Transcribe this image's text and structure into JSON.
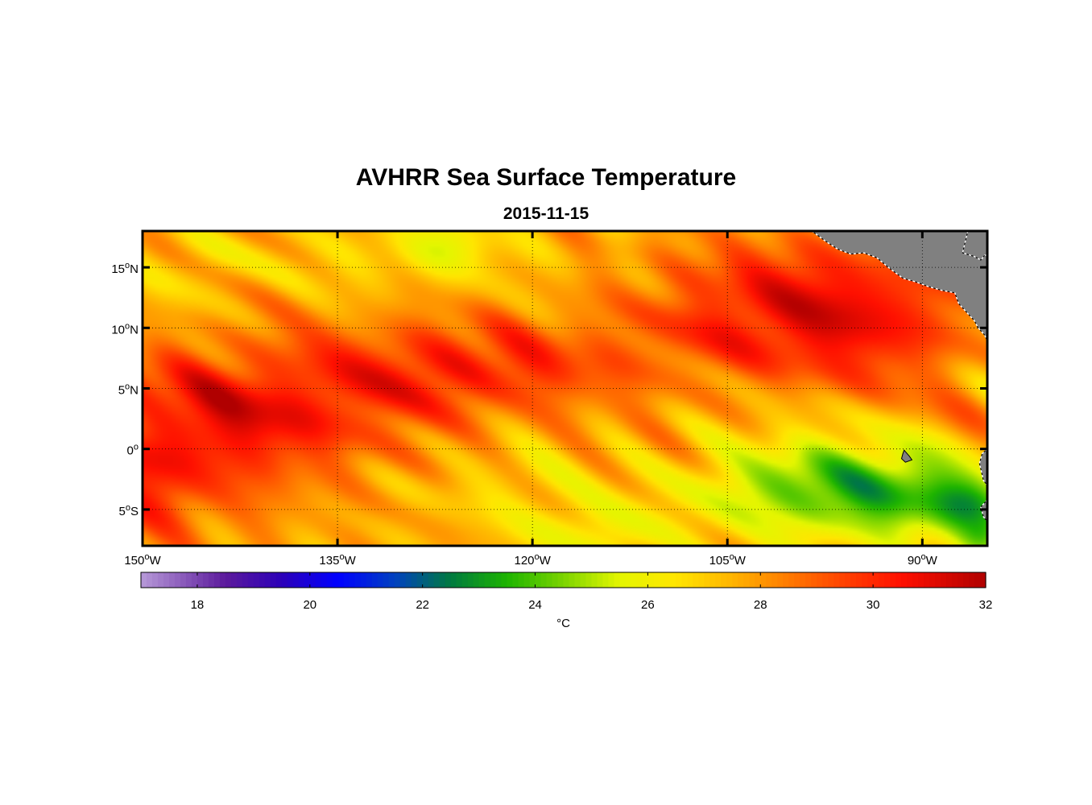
{
  "title": "AVHRR Sea Surface Temperature",
  "subtitle": "2015-11-15",
  "map": {
    "lon_range": [
      -150,
      -85
    ],
    "lat_range": [
      -8,
      18
    ],
    "lon_ticks": [
      {
        "value": -150,
        "deg": "150",
        "hemi": "W"
      },
      {
        "value": -135,
        "deg": "135",
        "hemi": "W"
      },
      {
        "value": -120,
        "deg": "120",
        "hemi": "W"
      },
      {
        "value": -105,
        "deg": "105",
        "hemi": "W"
      },
      {
        "value": -90,
        "deg": "90",
        "hemi": "W"
      }
    ],
    "lat_ticks": [
      {
        "value": 15,
        "deg": "15",
        "hemi": "N"
      },
      {
        "value": 10,
        "deg": "10",
        "hemi": "N"
      },
      {
        "value": 5,
        "deg": "5",
        "hemi": "N"
      },
      {
        "value": 0,
        "deg": "0",
        "hemi": ""
      },
      {
        "value": -5,
        "deg": "5",
        "hemi": "S"
      }
    ],
    "land_color": "#808080",
    "grid_style": "dotted"
  },
  "colorbar": {
    "min": 17,
    "max": 32,
    "ticks": [
      18,
      20,
      22,
      24,
      26,
      28,
      30,
      32
    ],
    "label": "°C",
    "stops": [
      {
        "v": 17,
        "c": "#b79ad8"
      },
      {
        "v": 18.5,
        "c": "#5c1a9c"
      },
      {
        "v": 19.5,
        "c": "#2c00b8"
      },
      {
        "v": 20.5,
        "c": "#0000ff"
      },
      {
        "v": 21.5,
        "c": "#0040c0"
      },
      {
        "v": 22.5,
        "c": "#007a40"
      },
      {
        "v": 23.5,
        "c": "#1db400"
      },
      {
        "v": 24.5,
        "c": "#7cd400"
      },
      {
        "v": 25.5,
        "c": "#e4f600"
      },
      {
        "v": 26.5,
        "c": "#ffe600"
      },
      {
        "v": 27.5,
        "c": "#ffb400"
      },
      {
        "v": 28.5,
        "c": "#ff7a00"
      },
      {
        "v": 29.5,
        "c": "#ff4000"
      },
      {
        "v": 30.5,
        "c": "#ff1000"
      },
      {
        "v": 32,
        "c": "#b00000"
      }
    ]
  },
  "sst_field": {
    "description_units": "°C",
    "background": 27.6,
    "anomalies": [
      {
        "lon": -146,
        "lat": 1,
        "rlon": 9,
        "rlat": 7,
        "amp": 2.2
      },
      {
        "lon": -138,
        "lat": 4,
        "rlon": 10,
        "rlat": 5,
        "amp": 1.8
      },
      {
        "lon": -127,
        "lat": 6,
        "rlon": 9,
        "rlat": 4,
        "amp": 1.8
      },
      {
        "lon": -113,
        "lat": 8,
        "rlon": 14,
        "rlat": 4,
        "amp": 1.4
      },
      {
        "lon": -100,
        "lat": 13,
        "rlon": 9,
        "rlat": 5,
        "amp": 2.5
      },
      {
        "lon": -93,
        "lat": 10,
        "rlon": 8,
        "rlat": 5,
        "amp": 2.0
      },
      {
        "lon": -150,
        "lat": -3,
        "rlon": 4,
        "rlat": 4,
        "amp": 1.4
      },
      {
        "lon": -130,
        "lat": 16,
        "rlon": 9,
        "rlat": 3,
        "amp": -0.9
      },
      {
        "lon": -146,
        "lat": 15,
        "rlon": 5,
        "rlat": 3,
        "amp": -0.7
      },
      {
        "lon": -126,
        "lat": 17,
        "rlon": 3,
        "rlat": 2,
        "amp": -1.1
      },
      {
        "lon": -115,
        "lat": -7,
        "rlon": 7,
        "rlat": 3,
        "amp": -1.5
      },
      {
        "lon": -122,
        "lat": -3,
        "rlon": 6,
        "rlat": 3,
        "amp": -0.7
      },
      {
        "lon": -98,
        "lat": -3,
        "rlon": 9,
        "rlat": 4,
        "amp": -3.4
      },
      {
        "lon": -90,
        "lat": -4.5,
        "rlon": 7,
        "rlat": 3.5,
        "amp": -2.4
      },
      {
        "lon": -86,
        "lat": -5,
        "rlon": 3,
        "rlat": 2.5,
        "amp": -2.0
      },
      {
        "lon": -85,
        "lat": -7.5,
        "rlon": 2,
        "rlat": 1.5,
        "amp": -2.0
      }
    ]
  },
  "land": {
    "central_america": [
      [
        -98.5,
        18
      ],
      [
        -97.5,
        17.2
      ],
      [
        -96.5,
        16.5
      ],
      [
        -95.5,
        16.1
      ],
      [
        -94.5,
        16.2
      ],
      [
        -93.5,
        15.8
      ],
      [
        -92.5,
        14.9
      ],
      [
        -91.5,
        14.1
      ],
      [
        -90.5,
        13.8
      ],
      [
        -89.5,
        13.4
      ],
      [
        -88.5,
        13.1
      ],
      [
        -87.5,
        12.9
      ],
      [
        -87.2,
        12.0
      ],
      [
        -86.6,
        11.3
      ],
      [
        -86.0,
        10.6
      ],
      [
        -85.7,
        10.0
      ],
      [
        -85.2,
        9.4
      ],
      [
        -85.0,
        8.9
      ],
      [
        -85.0,
        18
      ]
    ],
    "caribbean_coast": [
      [
        -86.5,
        18
      ],
      [
        -86.9,
        16.2
      ],
      [
        -86.0,
        15.9
      ],
      [
        -85.5,
        15.6
      ],
      [
        -85.2,
        16.0
      ],
      [
        -85.0,
        16.0
      ],
      [
        -85.0,
        18
      ]
    ],
    "south_america": [
      [
        -85.0,
        0
      ],
      [
        -85.4,
        -0.4
      ],
      [
        -85.6,
        -1.2
      ],
      [
        -85.3,
        -2.6
      ],
      [
        -85.0,
        -3.0
      ]
    ],
    "peru_lower": [
      [
        -85.0,
        -4.2
      ],
      [
        -85.5,
        -4.8
      ],
      [
        -85.3,
        -5.6
      ],
      [
        -85.0,
        -6.0
      ]
    ],
    "galapagos": [
      [
        -91.4,
        -0.1
      ],
      [
        -91.0,
        -0.6
      ],
      [
        -90.8,
        -0.9
      ],
      [
        -91.3,
        -1.1
      ],
      [
        -91.6,
        -0.8
      ],
      [
        -91.5,
        -0.4
      ]
    ]
  }
}
